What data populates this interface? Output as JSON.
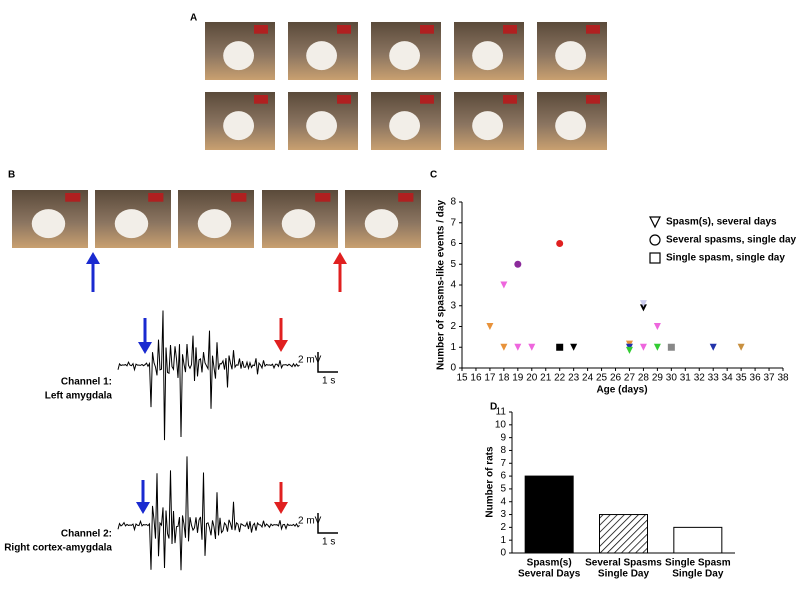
{
  "figure": {
    "panel_labels": [
      "A",
      "B",
      "C",
      "D"
    ],
    "channels": [
      {
        "title": "Channel 1:",
        "region": "Left amygdala"
      },
      {
        "title": "Channel 2:",
        "region": "Right cortex-amygdala"
      }
    ],
    "scale_bar": {
      "voltage": "2 mV",
      "time": "1 s"
    }
  },
  "chart_data": [
    {
      "type": "scatter",
      "xlabel": "Age (days)",
      "ylabel": "Number of spasms-like events / day",
      "xlim": [
        15,
        38
      ],
      "xticks": [
        15,
        16,
        17,
        18,
        19,
        20,
        21,
        22,
        23,
        24,
        25,
        26,
        27,
        28,
        29,
        30,
        31,
        32,
        33,
        34,
        35,
        36,
        37,
        38
      ],
      "ylim": [
        0,
        8
      ],
      "yticks": [
        0,
        1,
        2,
        3,
        4,
        5,
        6,
        7,
        8
      ],
      "series": [
        {
          "name": "Spasm(s), several days",
          "marker": "triangle",
          "x": [
            17,
            18,
            18,
            19,
            20,
            23,
            27,
            27,
            27,
            28,
            28,
            28,
            29,
            29,
            33,
            35
          ],
          "values": [
            2,
            1,
            4,
            1,
            1,
            1,
            1.15,
            1,
            0.85,
            1,
            2.9,
            3.1,
            2,
            1,
            1,
            1
          ],
          "colors": [
            "#e8923a",
            "#e8923a",
            "#ee66dd",
            "#ee66dd",
            "#ee66dd",
            "#000000",
            "#e8923a",
            "#2233aa",
            "#33cc33",
            "#ee66dd",
            "#000000",
            "#ccccee",
            "#ee66dd",
            "#33cc33",
            "#2233aa",
            "#c89040"
          ]
        },
        {
          "name": "Several spasms, single day",
          "marker": "circle",
          "x": [
            19,
            22
          ],
          "values": [
            5,
            6
          ],
          "colors": [
            "#8b2a9b",
            "#e02020"
          ]
        },
        {
          "name": "Single spasm, single day",
          "marker": "square",
          "x": [
            22,
            30
          ],
          "values": [
            1,
            1
          ],
          "colors": [
            "#000000",
            "#888888"
          ]
        }
      ]
    },
    {
      "type": "bar",
      "ylabel": "Number of rats",
      "categories": [
        [
          "Spasm(s)",
          "Several Days"
        ],
        [
          "Several Spasms",
          "Single Day"
        ],
        [
          "Single Spasm",
          "Single Day"
        ]
      ],
      "values": [
        6,
        3,
        2
      ],
      "colors": [
        "#000000",
        "#ffffff",
        "#ffffff"
      ],
      "hatch": [
        false,
        true,
        false
      ],
      "ylim": [
        0,
        11
      ],
      "yticks": [
        0,
        1,
        2,
        3,
        4,
        5,
        6,
        7,
        8,
        9,
        10,
        11
      ]
    }
  ]
}
